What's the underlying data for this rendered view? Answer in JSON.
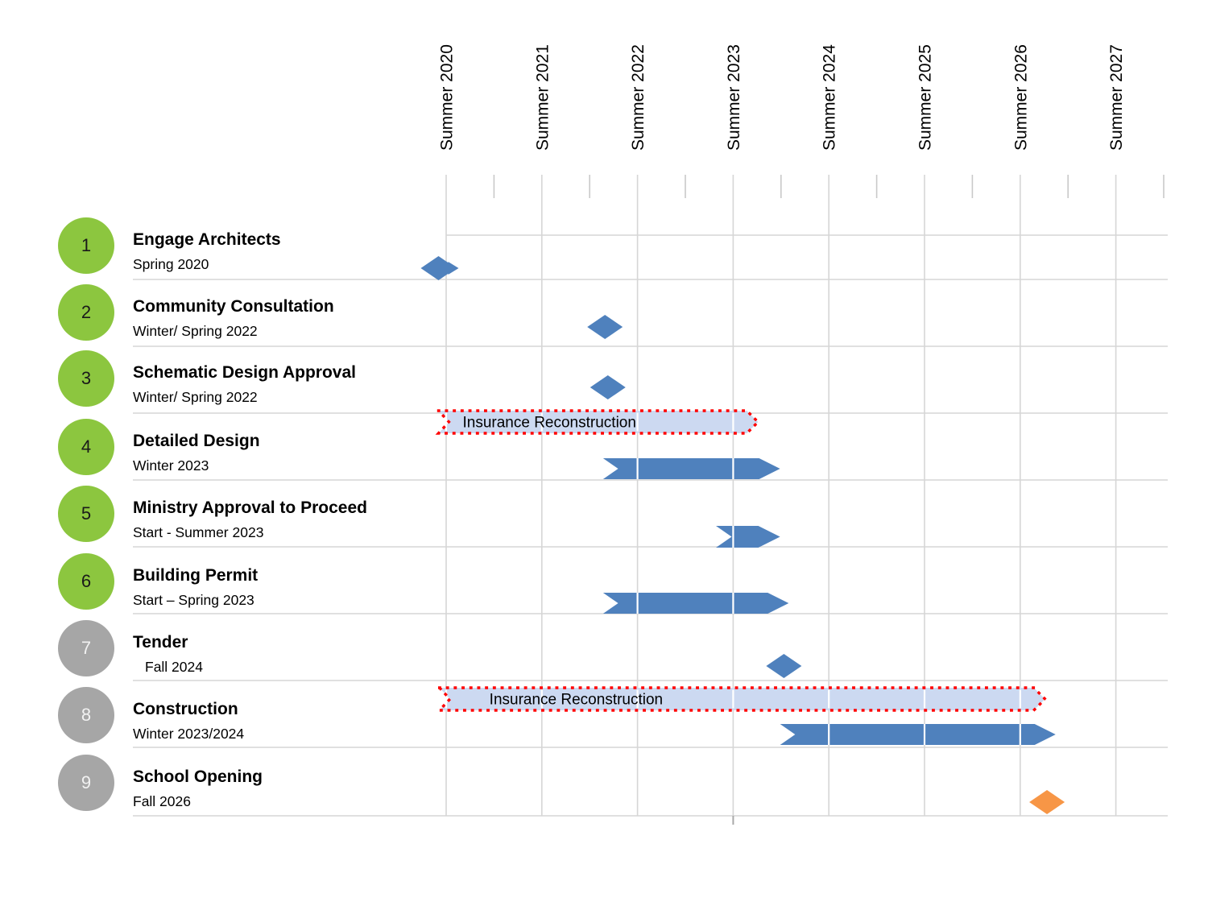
{
  "colors": {
    "bar_blue": "#4f81bd",
    "milestone_blue": "#4f81bd",
    "milestone_orange": "#f79646",
    "insurance_fill": "#ccd9f1",
    "insurance_border": "#ff0000",
    "badge_green": "#8cc63f",
    "badge_gray": "#a6a6a6",
    "gridline": "#d6d6d6",
    "tick": "#c9c9c9",
    "axis_marker": "#a9a9a9",
    "text": "#000000"
  },
  "chart_data": {
    "type": "gantt",
    "title": "",
    "x_axis": {
      "tick_labels": [
        "Summer 2020",
        "Summer 2021",
        "Summer 2022",
        "Summer 2023",
        "Summer 2024",
        "Summer 2025",
        "Summer 2026",
        "Summer 2027"
      ],
      "unit": "year",
      "minor_tick_every": "0.5 year",
      "range_years": [
        2020,
        2027.5
      ],
      "label_rotation_deg": -90
    },
    "grid": "on",
    "tasks": [
      {
        "num": "1",
        "title": "Engage Architects",
        "subtitle": "Spring 2020",
        "badge_color": "green",
        "milestone_t": 2019.92,
        "milestone_color": "blue",
        "milestone_tail": true
      },
      {
        "num": "2",
        "title": "Community Consultation",
        "subtitle": "Winter/ Spring 2022",
        "badge_color": "green",
        "milestone_t": 2021.66,
        "milestone_color": "blue"
      },
      {
        "num": "3",
        "title": "Schematic Design Approval",
        "subtitle": "Winter/ Spring 2022",
        "badge_color": "green",
        "milestone_t": 2021.69,
        "milestone_color": "blue"
      },
      {
        "num": "4",
        "title": "Detailed Design",
        "subtitle": "Winter 2023",
        "badge_color": "green",
        "bar": {
          "t_start": 2021.64,
          "t_end": 2023.49
        },
        "overlay": {
          "label": "Insurance Reconstruction",
          "t_start": 2019.92,
          "t_end": 2023.26
        }
      },
      {
        "num": "5",
        "title": "Ministry Approval to Proceed",
        "subtitle": "Start - Summer 2023",
        "badge_color": "green",
        "bar": {
          "t_start": 2022.82,
          "t_end": 2023.49
        }
      },
      {
        "num": "6",
        "title": "Building Permit",
        "subtitle": "Start – Spring 2023",
        "badge_color": "green",
        "bar": {
          "t_start": 2021.64,
          "t_end": 2023.58
        }
      },
      {
        "num": "7",
        "title": "Tender",
        "subtitle": "Fall 2024",
        "subtitle_indent": true,
        "badge_color": "gray",
        "milestone_t": 2023.53,
        "milestone_color": "blue"
      },
      {
        "num": "8",
        "title": "Construction",
        "subtitle": "Winter 2023/2024",
        "badge_color": "gray",
        "bar": {
          "t_start": 2023.49,
          "t_end": 2026.37
        },
        "overlay": {
          "label": "Insurance Reconstruction",
          "t_start": 2019.93,
          "t_end": 2026.26
        }
      },
      {
        "num": "9",
        "title": "School Opening",
        "subtitle": "Fall 2026",
        "badge_color": "gray",
        "milestone_t": 2026.28,
        "milestone_color": "orange"
      }
    ]
  }
}
